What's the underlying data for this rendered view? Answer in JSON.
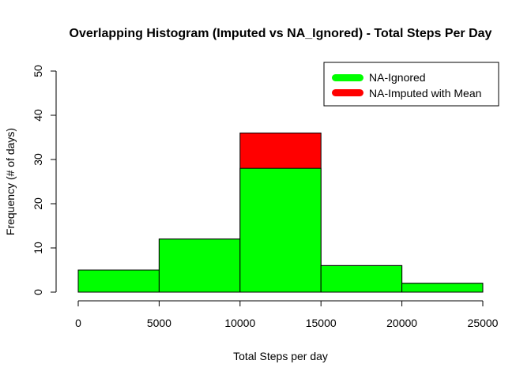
{
  "chart_data": {
    "type": "bar",
    "title": "Overlapping Histogram (Imputed vs NA_Ignored) - Total Steps Per Day",
    "xlabel": "Total Steps per day",
    "ylabel": "Frequency (# of days)",
    "xlim": [
      0,
      25000
    ],
    "ylim": [
      0,
      50
    ],
    "x_ticks": [
      "0",
      "5000",
      "10000",
      "15000",
      "20000",
      "25000"
    ],
    "y_ticks": [
      "0",
      "10",
      "20",
      "30",
      "40",
      "50"
    ],
    "bins": [
      [
        0,
        5000
      ],
      [
        5000,
        10000
      ],
      [
        10000,
        15000
      ],
      [
        15000,
        20000
      ],
      [
        20000,
        25000
      ]
    ],
    "series": [
      {
        "name": "NA-Imputed with Mean",
        "color": "#ff0000",
        "values": [
          5,
          12,
          36,
          6,
          2
        ]
      },
      {
        "name": "NA-Ignored",
        "color": "#00ff00",
        "values": [
          5,
          12,
          28,
          6,
          2
        ]
      }
    ],
    "legend": {
      "position": "top-right",
      "entries": [
        {
          "label": "NA-Ignored",
          "color": "#00ff00"
        },
        {
          "label": "NA-Imputed with Mean",
          "color": "#ff0000"
        }
      ]
    },
    "grid": false
  }
}
